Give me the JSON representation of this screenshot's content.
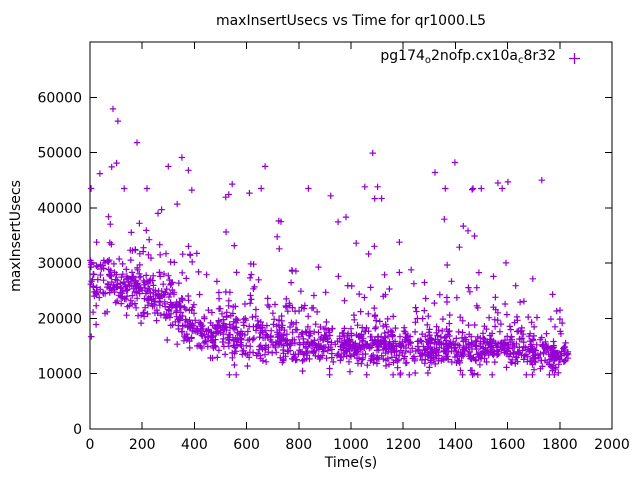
{
  "chart_data": {
    "type": "scatter",
    "title": "maxInsertUsecs vs Time for qr1000.L5",
    "xlabel": "Time(s)",
    "ylabel": "maxInsertUsecs",
    "xlim": [
      0,
      2000
    ],
    "ylim": [
      0,
      70000
    ],
    "xticks": [
      0,
      200,
      400,
      600,
      800,
      1000,
      1200,
      1400,
      1600,
      1800,
      2000
    ],
    "yticks": [
      0,
      10000,
      20000,
      30000,
      40000,
      50000,
      60000
    ],
    "grid": false,
    "background": "#ffffff",
    "axis_color": "#000000",
    "text_color": "#000000",
    "legend": {
      "position": "top-right-inside",
      "series_label": "pg174_o2nofp.cx10a_c8r32",
      "label_parts": [
        {
          "text": "pg174",
          "sub": false
        },
        {
          "text": "o",
          "sub": true
        },
        {
          "text": "2nofp.cx10a",
          "sub": false
        },
        {
          "text": "c",
          "sub": true
        },
        {
          "text": "8r32",
          "sub": false
        }
      ],
      "marker": "plus",
      "marker_color": "#9400D3"
    },
    "series": [
      {
        "name": "pg174_o2nofp.cx10a_c8r32",
        "marker": "plus",
        "color": "#9400D3",
        "approx_point_count": 1640,
        "scatter_model": {
          "seed": 1337,
          "band": {
            "count": 1480,
            "t_range": [
              0,
              1832
            ],
            "center_keypoints": [
              [
                0,
                25700
              ],
              [
                100,
                26400
              ],
              [
                200,
                24800
              ],
              [
                280,
                23300
              ],
              [
                350,
                20600
              ],
              [
                420,
                17900
              ],
              [
                470,
                16450
              ],
              [
                520,
                17900
              ],
              [
                570,
                16450
              ],
              [
                620,
                17500
              ],
              [
                680,
                15700
              ],
              [
                740,
                16100
              ],
              [
                800,
                15200
              ],
              [
                900,
                14800
              ],
              [
                1000,
                15350
              ],
              [
                1100,
                14450
              ],
              [
                1200,
                14800
              ],
              [
                1300,
                14100
              ],
              [
                1400,
                14450
              ],
              [
                1500,
                14100
              ],
              [
                1600,
                14450
              ],
              [
                1700,
                13900
              ],
              [
                1800,
                13200
              ],
              [
                1832,
                12800
              ]
            ],
            "sigma_start": 2300,
            "sigma_end": 1250,
            "upper_tail_prob": 0.2,
            "upper_tail_mean": 2600,
            "lower_tail_prob": 0.08,
            "lower_tail_mean": 2000,
            "v_min": 9800
          },
          "mid_outliers": {
            "count": 135,
            "offset": 4500,
            "extra_mean": 6800,
            "v_max": 43500
          },
          "high_outliers": [
            [
              88,
              57900
            ],
            [
              107,
              55700
            ],
            [
              180,
              51800
            ],
            [
              38,
              46200
            ],
            [
              83,
              47400
            ],
            [
              102,
              48100
            ],
            [
              300,
              47500
            ],
            [
              352,
              49100
            ],
            [
              377,
              46800
            ],
            [
              545,
              44300
            ],
            [
              671,
              47500
            ],
            [
              1053,
              43800
            ],
            [
              1083,
              49900
            ],
            [
              1102,
              43800
            ],
            [
              1322,
              46400
            ],
            [
              1398,
              48200
            ],
            [
              1464,
              43300
            ],
            [
              1563,
              44500
            ],
            [
              1601,
              44700
            ],
            [
              1731,
              45000
            ]
          ]
        }
      }
    ]
  }
}
